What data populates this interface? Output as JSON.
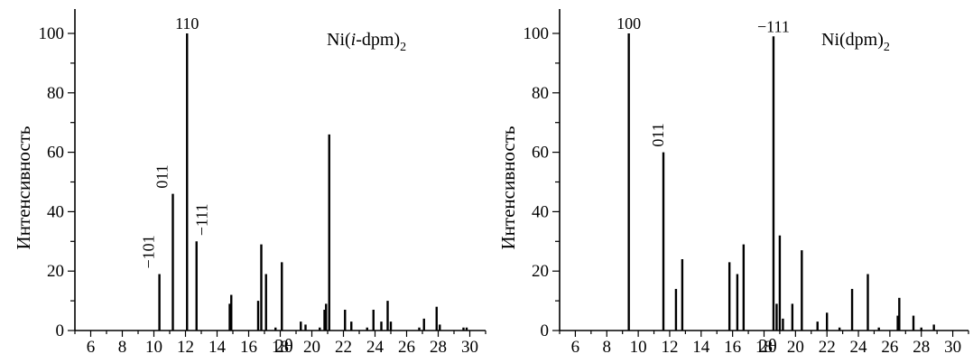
{
  "chart_data": [
    {
      "type": "bar",
      "panel_label": {
        "main": "Ni(",
        "italic": "i",
        "after": "-dpm)",
        "subscript": "2"
      },
      "xlabel": "2θ",
      "ylabel": "Интенсивность",
      "xlim": [
        5,
        31
      ],
      "ylim": [
        0,
        110
      ],
      "x_ticks": [
        6,
        8,
        10,
        12,
        14,
        16,
        18,
        20,
        22,
        24,
        26,
        28,
        30
      ],
      "y_ticks": [
        0,
        20,
        40,
        60,
        80,
        100
      ],
      "grid": false,
      "points": [
        {
          "x": 10.35,
          "y": 19,
          "label": "−101"
        },
        {
          "x": 11.2,
          "y": 46,
          "label": "011"
        },
        {
          "x": 12.1,
          "y": 100,
          "label": "110"
        },
        {
          "x": 12.7,
          "y": 30,
          "label": "−111"
        },
        {
          "x": 14.8,
          "y": 9
        },
        {
          "x": 14.9,
          "y": 12
        },
        {
          "x": 16.6,
          "y": 10
        },
        {
          "x": 16.8,
          "y": 29
        },
        {
          "x": 17.1,
          "y": 19
        },
        {
          "x": 17.7,
          "y": 1
        },
        {
          "x": 18.1,
          "y": 23
        },
        {
          "x": 19.3,
          "y": 3
        },
        {
          "x": 19.6,
          "y": 2
        },
        {
          "x": 20.5,
          "y": 1
        },
        {
          "x": 20.8,
          "y": 7
        },
        {
          "x": 20.9,
          "y": 9
        },
        {
          "x": 21.1,
          "y": 66
        },
        {
          "x": 22.1,
          "y": 7
        },
        {
          "x": 22.5,
          "y": 3
        },
        {
          "x": 23.5,
          "y": 1
        },
        {
          "x": 23.9,
          "y": 7
        },
        {
          "x": 24.4,
          "y": 3
        },
        {
          "x": 24.8,
          "y": 10
        },
        {
          "x": 25.0,
          "y": 3
        },
        {
          "x": 26.8,
          "y": 1
        },
        {
          "x": 27.1,
          "y": 4
        },
        {
          "x": 27.9,
          "y": 8
        },
        {
          "x": 28.1,
          "y": 2
        },
        {
          "x": 29.6,
          "y": 1
        },
        {
          "x": 29.8,
          "y": 1
        }
      ]
    },
    {
      "type": "bar",
      "panel_label": {
        "main": "Ni(dpm)",
        "italic": "",
        "after": "",
        "subscript": "2"
      },
      "xlabel": "2θ",
      "ylabel": "Интенсивность",
      "xlim": [
        5,
        31
      ],
      "ylim": [
        0,
        110
      ],
      "x_ticks": [
        6,
        8,
        10,
        12,
        14,
        16,
        18,
        20,
        22,
        24,
        26,
        28,
        30
      ],
      "y_ticks": [
        0,
        20,
        40,
        60,
        80,
        100
      ],
      "grid": false,
      "points": [
        {
          "x": 9.4,
          "y": 100,
          "label": "100"
        },
        {
          "x": 11.6,
          "y": 60,
          "label": "011"
        },
        {
          "x": 12.4,
          "y": 14
        },
        {
          "x": 12.8,
          "y": 24
        },
        {
          "x": 15.8,
          "y": 23
        },
        {
          "x": 16.3,
          "y": 19
        },
        {
          "x": 16.7,
          "y": 29
        },
        {
          "x": 18.6,
          "y": 99,
          "label": "−111"
        },
        {
          "x": 18.8,
          "y": 9
        },
        {
          "x": 19.0,
          "y": 32
        },
        {
          "x": 19.2,
          "y": 4
        },
        {
          "x": 19.8,
          "y": 9
        },
        {
          "x": 20.4,
          "y": 27
        },
        {
          "x": 21.4,
          "y": 3
        },
        {
          "x": 22.0,
          "y": 6
        },
        {
          "x": 22.8,
          "y": 1
        },
        {
          "x": 23.6,
          "y": 14
        },
        {
          "x": 24.6,
          "y": 19
        },
        {
          "x": 25.3,
          "y": 1
        },
        {
          "x": 26.5,
          "y": 5
        },
        {
          "x": 26.6,
          "y": 11
        },
        {
          "x": 27.5,
          "y": 5
        },
        {
          "x": 28.0,
          "y": 1
        },
        {
          "x": 28.8,
          "y": 2
        }
      ]
    }
  ]
}
